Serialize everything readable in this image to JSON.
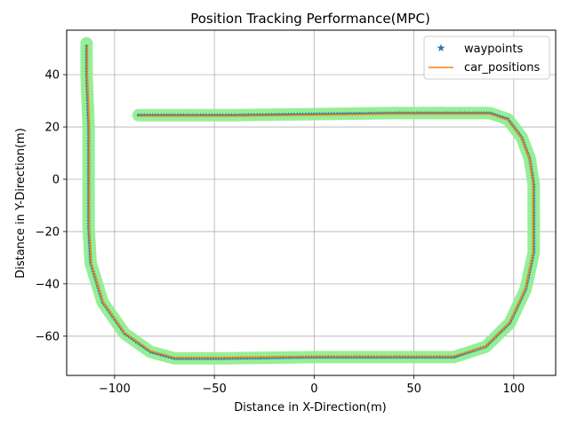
{
  "chart_data": {
    "type": "line",
    "title": "Position Tracking Performance(MPC)",
    "xlabel": "Distance in X-Direction(m)",
    "ylabel": "Distance in Y-Direction(m)",
    "xlim": [
      -124,
      121
    ],
    "ylim": [
      -75,
      57
    ],
    "xticks": [
      -100,
      -50,
      0,
      50,
      100
    ],
    "yticks": [
      -60,
      -40,
      -20,
      0,
      20,
      40
    ],
    "xtick_labels": [
      "−100",
      "−50",
      "0",
      "50",
      "100"
    ],
    "ytick_labels": [
      "−60",
      "−40",
      "−20",
      "0",
      "20",
      "40"
    ],
    "grid": true,
    "legend_position": "top-right",
    "colors": {
      "waypoints": "#1f77b4",
      "car_positions": "#ff7f0e",
      "track_band": "#90ee90"
    },
    "series": [
      {
        "name": "waypoints",
        "marker": "star",
        "path": [
          [
            -88,
            24.5
          ],
          [
            -40,
            24.5
          ],
          [
            40,
            25.3
          ],
          [
            88,
            25.3
          ],
          [
            97,
            23
          ],
          [
            104,
            16
          ],
          [
            108,
            8
          ],
          [
            110,
            -2
          ],
          [
            110,
            -28
          ],
          [
            106,
            -42
          ],
          [
            98,
            -55
          ],
          [
            86,
            -64
          ],
          [
            70,
            -68
          ],
          [
            0,
            -68
          ],
          [
            -45,
            -68.5
          ],
          [
            -70,
            -68.5
          ],
          [
            -82,
            -66
          ],
          [
            -95,
            -59
          ],
          [
            -106,
            -47
          ],
          [
            -112,
            -32
          ],
          [
            -113,
            -18
          ],
          [
            -113,
            20
          ],
          [
            -114,
            40
          ],
          [
            -114,
            52
          ]
        ]
      },
      {
        "name": "car_positions",
        "marker": "line",
        "path": [
          [
            -88,
            24.2
          ],
          [
            -40,
            24.2
          ],
          [
            40,
            25
          ],
          [
            88,
            25
          ],
          [
            97,
            22.7
          ],
          [
            104,
            15.7
          ],
          [
            108,
            7.7
          ],
          [
            109.7,
            -2
          ],
          [
            109.7,
            -28
          ],
          [
            105.7,
            -42
          ],
          [
            97.7,
            -55
          ],
          [
            85.7,
            -64
          ],
          [
            69.7,
            -67.7
          ],
          [
            0,
            -67.7
          ],
          [
            -45,
            -68.2
          ],
          [
            -70,
            -68.2
          ],
          [
            -82,
            -65.7
          ],
          [
            -95,
            -58.7
          ],
          [
            -105.7,
            -47
          ],
          [
            -111.7,
            -32
          ],
          [
            -112.7,
            -18
          ],
          [
            -112.7,
            20
          ],
          [
            -113.7,
            40
          ],
          [
            -113.7,
            51
          ]
        ]
      }
    ]
  }
}
